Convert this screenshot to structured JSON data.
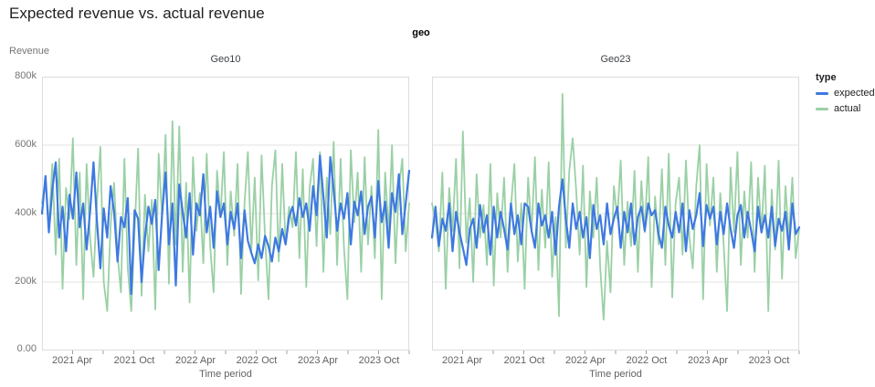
{
  "title": "Expected revenue vs. actual revenue",
  "facet_header": "geo",
  "axes": {
    "y_title": "Revenue",
    "y_ticks": [
      "800k",
      "600k",
      "400k",
      "200k",
      "0.00"
    ],
    "y_gridlines": [
      200,
      400,
      600
    ],
    "x_title": "Time period",
    "x_tick_labels": [
      "2021 Apr",
      "2021 Oct",
      "2022 Apr",
      "2022 Oct",
      "2023 Apr",
      "2023 Oct"
    ],
    "x_label_months": [
      3,
      9,
      15,
      21,
      27,
      33
    ],
    "x_minor_tick_every_months": 3,
    "x_total_months": 36
  },
  "legend": {
    "title": "type",
    "items": [
      {
        "label": "expected",
        "color": "#3e79e1"
      },
      {
        "label": "actual",
        "color": "#9ad0a5"
      }
    ]
  },
  "colors": {
    "expected": "#3e79e1",
    "actual": "#9ad0a5",
    "grid": "#e3e3e3",
    "panel_border": "#dadce0",
    "tick": "#9aa0a6",
    "text_muted": "#757575",
    "text_dark": "#202124"
  },
  "chart_data": [
    {
      "type": "line",
      "facet": "Geo10",
      "x_start": "2021-01",
      "x_end": "2023-12",
      "y_unit": "thousands",
      "ylim": [
        0,
        800
      ],
      "series": [
        {
          "name": "expected",
          "color": "#3e79e1",
          "values": [
            400,
            510,
            345,
            470,
            550,
            330,
            420,
            290,
            455,
            385,
            520,
            360,
            430,
            295,
            405,
            550,
            380,
            240,
            415,
            330,
            480,
            405,
            260,
            390,
            360,
            445,
            165,
            410,
            385,
            200,
            330,
            420,
            370,
            440,
            235,
            400,
            520,
            310,
            430,
            190,
            485,
            405,
            330,
            460,
            280,
            430,
            395,
            515,
            345,
            420,
            300,
            465,
            390,
            430,
            310,
            405,
            355,
            430,
            270,
            410,
            320,
            285,
            255,
            310,
            270,
            335,
            305,
            260,
            330,
            290,
            355,
            310,
            390,
            420,
            365,
            445,
            390,
            430,
            350,
            480,
            395,
            570,
            450,
            330,
            565,
            470,
            350,
            430,
            385,
            460,
            310,
            435,
            395,
            465,
            340,
            420,
            450,
            330,
            495,
            375,
            435,
            300,
            460,
            405,
            515,
            340,
            430,
            525
          ]
        },
        {
          "name": "actual",
          "color": "#9ad0a5",
          "values": [
            430,
            500,
            360,
            545,
            280,
            560,
            180,
            475,
            385,
            620,
            250,
            520,
            150,
            545,
            330,
            215,
            430,
            595,
            200,
            115,
            365,
            490,
            280,
            170,
            560,
            240,
            115,
            350,
            590,
            160,
            455,
            290,
            440,
            120,
            575,
            385,
            630,
            195,
            670,
            310,
            655,
            230,
            490,
            140,
            565,
            350,
            460,
            255,
            575,
            305,
            170,
            525,
            390,
            580,
            250,
            465,
            335,
            545,
            165,
            430,
            580,
            290,
            505,
            205,
            570,
            330,
            150,
            480,
            585,
            260,
            545,
            310,
            420,
            360,
            580,
            270,
            530,
            185,
            475,
            560,
            305,
            580,
            230,
            505,
            340,
            610,
            250,
            560,
            300,
            150,
            585,
            375,
            520,
            230,
            565,
            310,
            480,
            270,
            645,
            150,
            520,
            345,
            600,
            255,
            475,
            560,
            290,
            430
          ]
        }
      ]
    },
    {
      "type": "line",
      "facet": "Geo23",
      "x_start": "2021-01",
      "x_end": "2023-12",
      "y_unit": "thousands",
      "ylim": [
        0,
        800
      ],
      "series": [
        {
          "name": "expected",
          "color": "#3e79e1",
          "values": [
            330,
            420,
            305,
            385,
            350,
            430,
            290,
            405,
            345,
            300,
            250,
            355,
            385,
            300,
            425,
            345,
            395,
            280,
            420,
            330,
            405,
            355,
            295,
            430,
            340,
            395,
            310,
            430,
            420,
            350,
            300,
            430,
            365,
            395,
            330,
            405,
            280,
            420,
            500,
            385,
            300,
            430,
            355,
            405,
            330,
            390,
            270,
            425,
            355,
            395,
            310,
            430,
            340,
            385,
            420,
            300,
            405,
            345,
            430,
            310,
            390,
            420,
            350,
            430,
            395,
            410,
            340,
            300,
            420,
            365,
            330,
            405,
            345,
            430,
            290,
            410,
            355,
            395,
            460,
            305,
            425,
            385,
            420,
            310,
            405,
            340,
            430,
            355,
            300,
            395,
            425,
            330,
            405,
            350,
            290,
            420,
            345,
            395,
            330,
            420,
            305,
            385,
            350,
            405,
            295,
            430,
            340,
            360
          ]
        },
        {
          "name": "actual",
          "color": "#9ad0a5",
          "values": [
            430,
            380,
            290,
            520,
            180,
            475,
            350,
            560,
            240,
            640,
            315,
            445,
            200,
            515,
            330,
            425,
            250,
            545,
            190,
            460,
            330,
            505,
            230,
            420,
            545,
            260,
            430,
            180,
            505,
            345,
            565,
            235,
            470,
            300,
            550,
            215,
            390,
            100,
            750,
            300,
            525,
            620,
            470,
            280,
            540,
            185,
            465,
            330,
            505,
            245,
            90,
            320,
            170,
            480,
            385,
            555,
            250,
            435,
            305,
            525,
            230,
            495,
            345,
            565,
            185,
            450,
            310,
            530,
            250,
            575,
            155,
            430,
            505,
            280,
            555,
            330,
            240,
            480,
            600,
            150,
            545,
            365,
            505,
            230,
            460,
            310,
            115,
            535,
            345,
            580,
            250,
            465,
            330,
            550,
            230,
            505,
            345,
            540,
            115,
            470,
            295,
            555,
            210,
            480,
            330,
            505,
            270,
            355
          ]
        }
      ]
    }
  ]
}
